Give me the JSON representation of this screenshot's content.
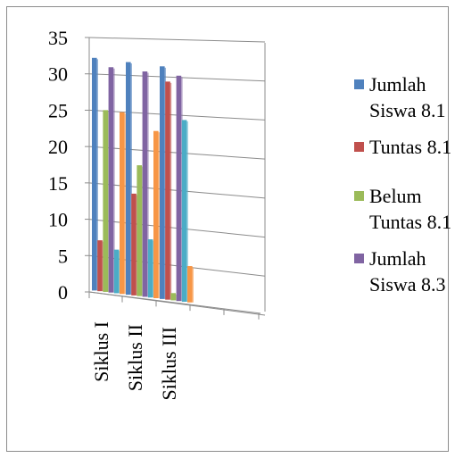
{
  "chart_data": {
    "type": "bar",
    "style": "3d-clustered-column",
    "categories": [
      "Siklus I",
      "Siklus II",
      "Siklus III"
    ],
    "ylim": [
      0,
      35
    ],
    "yticks": [
      "0",
      "5",
      "10",
      "15",
      "20",
      "25",
      "30",
      "35"
    ],
    "grid": true,
    "legend_position": "right",
    "series": [
      {
        "name": "Jumlah Siswa 8.1",
        "color": "#4f81bd",
        "values": [
          32,
          32,
          32
        ]
      },
      {
        "name": "Tuntas 8.1",
        "color": "#c0504d",
        "values": [
          7,
          14,
          30
        ]
      },
      {
        "name": "Belum Tuntas 8.1",
        "color": "#9bbb59",
        "values": [
          25,
          18,
          1
        ]
      },
      {
        "name": "Jumlah Siswa 8.3",
        "color": "#8064a2",
        "values": [
          31,
          31,
          31
        ]
      },
      {
        "name": "",
        "color": "#4bacc6",
        "values": [
          6,
          8,
          25
        ]
      },
      {
        "name": "",
        "color": "#f79646",
        "values": [
          25,
          23,
          5
        ]
      }
    ]
  }
}
